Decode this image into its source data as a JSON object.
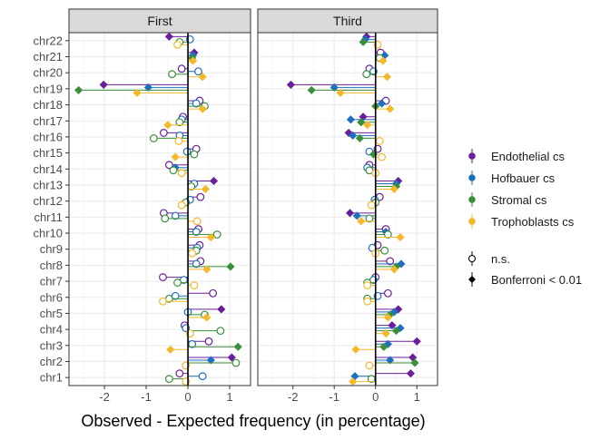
{
  "chart_data": {
    "type": "lollipop-dot",
    "xlabel": "Observed - Expected frequency (in percentage)",
    "xlim": [
      -2.85,
      1.5
    ],
    "x_ticks": [
      -2,
      -1,
      0,
      1
    ],
    "categories": [
      "chr1",
      "chr2",
      "chr3",
      "chr4",
      "chr5",
      "chr6",
      "chr7",
      "chr8",
      "chr9",
      "chr10",
      "chr11",
      "chr12",
      "chr13",
      "chr14",
      "chr15",
      "chr16",
      "chr17",
      "chr18",
      "chr19",
      "chr20",
      "chr21",
      "chr22"
    ],
    "panels": [
      "First",
      "Third"
    ],
    "series": [
      {
        "name": "Endothelial cs",
        "color": "#6a1f9a"
      },
      {
        "name": "Hofbauer cs",
        "color": "#1f6fbf"
      },
      {
        "name": "Stromal cs",
        "color": "#3a8f3a"
      },
      {
        "name": "Trophoblasts cs",
        "color": "#f4b829"
      }
    ],
    "legend_placement": "right",
    "significance_legend": {
      "ns_label": "n.s.",
      "sig_label": "Bonferroni < 0.01"
    },
    "values": {
      "First": {
        "Endothelial cs": [
          [
            -0.2,
            "ns"
          ],
          [
            1.05,
            "sig"
          ],
          [
            0.5,
            "ns"
          ],
          [
            -0.08,
            "ns"
          ],
          [
            0.8,
            "sig"
          ],
          [
            0.6,
            "ns"
          ],
          [
            -0.6,
            "ns"
          ],
          [
            0.3,
            "ns"
          ],
          [
            0.28,
            "ns"
          ],
          [
            0.25,
            "ns"
          ],
          [
            -0.58,
            "ns"
          ],
          [
            0.3,
            "ns"
          ],
          [
            0.62,
            "sig"
          ],
          [
            -0.45,
            "ns"
          ],
          [
            0.2,
            "ns"
          ],
          [
            -0.58,
            "ns"
          ],
          [
            -0.12,
            "ns"
          ],
          [
            0.28,
            "ns"
          ],
          [
            -2.02,
            "sig"
          ],
          [
            -0.15,
            "ns"
          ],
          [
            0.15,
            "sig"
          ],
          [
            -0.45,
            "sig"
          ]
        ],
        "Hofbauer cs": [
          [
            0.35,
            "ns"
          ],
          [
            0.55,
            "sig"
          ],
          [
            0.1,
            "ns"
          ],
          [
            -0.05,
            "ns"
          ],
          [
            0.0,
            "ns"
          ],
          [
            -0.3,
            "ns"
          ],
          [
            -0.1,
            "ns"
          ],
          [
            0.2,
            "ns"
          ],
          [
            0.22,
            "ns"
          ],
          [
            0.2,
            "ns"
          ],
          [
            -0.3,
            "ns"
          ],
          [
            0.05,
            "ns"
          ],
          [
            0.15,
            "ns"
          ],
          [
            -0.3,
            "sig"
          ],
          [
            -0.02,
            "ns"
          ],
          [
            -0.2,
            "ns"
          ],
          [
            -0.15,
            "ns"
          ],
          [
            0.2,
            "ns"
          ],
          [
            -0.95,
            "sig"
          ],
          [
            0.25,
            "ns"
          ],
          [
            0.12,
            "sig"
          ],
          [
            0.05,
            "ns"
          ]
        ],
        "Stromal cs": [
          [
            -0.45,
            "ns"
          ],
          [
            1.15,
            "ns"
          ],
          [
            1.2,
            "sig"
          ],
          [
            0.78,
            "ns"
          ],
          [
            0.4,
            "ns"
          ],
          [
            -0.45,
            "ns"
          ],
          [
            -0.25,
            "ns"
          ],
          [
            1.02,
            "sig"
          ],
          [
            0.2,
            "ns"
          ],
          [
            0.7,
            "ns"
          ],
          [
            -0.55,
            "ns"
          ],
          [
            -0.05,
            "ns"
          ],
          [
            0.08,
            "ns"
          ],
          [
            -0.35,
            "ns"
          ],
          [
            0.15,
            "ns"
          ],
          [
            -0.82,
            "ns"
          ],
          [
            -0.2,
            "ns"
          ],
          [
            0.4,
            "ns"
          ],
          [
            -2.62,
            "sig"
          ],
          [
            -0.38,
            "ns"
          ],
          [
            0.1,
            "sig"
          ],
          [
            -0.2,
            "ns"
          ]
        ],
        "Trophoblasts cs": [
          [
            -0.05,
            "ns"
          ],
          [
            -0.05,
            "ns"
          ],
          [
            -0.42,
            "sig"
          ],
          [
            0.05,
            "ns"
          ],
          [
            0.45,
            "sig"
          ],
          [
            -0.6,
            "ns"
          ],
          [
            0.15,
            "ns"
          ],
          [
            0.45,
            "sig"
          ],
          [
            0.1,
            "ns"
          ],
          [
            0.55,
            "sig"
          ],
          [
            0.22,
            "ns"
          ],
          [
            -0.15,
            "ns"
          ],
          [
            0.42,
            "sig"
          ],
          [
            -0.15,
            "ns"
          ],
          [
            -0.3,
            "sig"
          ],
          [
            -0.22,
            "ns"
          ],
          [
            -0.48,
            "sig"
          ],
          [
            0.35,
            "sig"
          ],
          [
            -1.22,
            "sig"
          ],
          [
            0.35,
            "sig"
          ],
          [
            0.12,
            "sig"
          ],
          [
            -0.25,
            "ns"
          ]
        ]
      },
      "Third": {
        "Endothelial cs": [
          [
            0.85,
            "sig"
          ],
          [
            0.9,
            "sig"
          ],
          [
            1.0,
            "sig"
          ],
          [
            0.4,
            "sig"
          ],
          [
            0.55,
            "sig"
          ],
          [
            0.3,
            "ns"
          ],
          [
            0.0,
            "ns"
          ],
          [
            0.35,
            "ns"
          ],
          [
            0.05,
            "ns"
          ],
          [
            0.25,
            "ns"
          ],
          [
            -0.62,
            "sig"
          ],
          [
            0.1,
            "ns"
          ],
          [
            0.55,
            "sig"
          ],
          [
            -0.15,
            "ns"
          ],
          [
            0.05,
            "ns"
          ],
          [
            -0.65,
            "sig"
          ],
          [
            -0.3,
            "sig"
          ],
          [
            0.25,
            "ns"
          ],
          [
            -2.05,
            "sig"
          ],
          [
            -0.15,
            "ns"
          ],
          [
            0.12,
            "ns"
          ],
          [
            -0.22,
            "sig"
          ]
        ],
        "Hofbauer cs": [
          [
            -0.5,
            "sig"
          ],
          [
            0.35,
            "sig"
          ],
          [
            0.3,
            "sig"
          ],
          [
            0.6,
            "sig"
          ],
          [
            0.45,
            "sig"
          ],
          [
            0.05,
            "ns"
          ],
          [
            -0.05,
            "ns"
          ],
          [
            0.62,
            "sig"
          ],
          [
            -0.08,
            "ns"
          ],
          [
            0.25,
            "sig"
          ],
          [
            -0.45,
            "sig"
          ],
          [
            -0.02,
            "ns"
          ],
          [
            0.5,
            "sig"
          ],
          [
            -0.2,
            "ns"
          ],
          [
            -0.15,
            "ns"
          ],
          [
            -0.55,
            "sig"
          ],
          [
            -0.6,
            "sig"
          ],
          [
            0.15,
            "sig"
          ],
          [
            -1.0,
            "sig"
          ],
          [
            -0.05,
            "ns"
          ],
          [
            0.22,
            "sig"
          ],
          [
            -0.25,
            "sig"
          ]
        ],
        "Stromal cs": [
          [
            -0.1,
            "ns"
          ],
          [
            0.95,
            "sig"
          ],
          [
            0.2,
            "sig"
          ],
          [
            0.5,
            "sig"
          ],
          [
            0.35,
            "sig"
          ],
          [
            -0.2,
            "ns"
          ],
          [
            -0.2,
            "ns"
          ],
          [
            0.5,
            "sig"
          ],
          [
            0.22,
            "ns"
          ],
          [
            0.3,
            "ns"
          ],
          [
            -0.15,
            "ns"
          ],
          [
            0.0,
            "ns"
          ],
          [
            0.5,
            "sig"
          ],
          [
            -0.15,
            "ns"
          ],
          [
            -0.05,
            "sig"
          ],
          [
            -0.38,
            "sig"
          ],
          [
            -0.35,
            "sig"
          ],
          [
            0.0,
            "sig"
          ],
          [
            -1.55,
            "sig"
          ],
          [
            -0.22,
            "ns"
          ],
          [
            0.1,
            "ns"
          ],
          [
            -0.3,
            "sig"
          ]
        ],
        "Trophoblasts cs": [
          [
            -0.55,
            "sig"
          ],
          [
            -0.15,
            "ns"
          ],
          [
            -0.48,
            "sig"
          ],
          [
            0.25,
            "sig"
          ],
          [
            0.3,
            "sig"
          ],
          [
            -0.2,
            "ns"
          ],
          [
            -0.2,
            "ns"
          ],
          [
            0.45,
            "sig"
          ],
          [
            0.0,
            "ns"
          ],
          [
            0.6,
            "sig"
          ],
          [
            -0.35,
            "sig"
          ],
          [
            -0.1,
            "ns"
          ],
          [
            0.45,
            "sig"
          ],
          [
            0.0,
            "ns"
          ],
          [
            0.15,
            "ns"
          ],
          [
            0.1,
            "ns"
          ],
          [
            -0.2,
            "sig"
          ],
          [
            0.35,
            "sig"
          ],
          [
            -0.85,
            "sig"
          ],
          [
            0.28,
            "sig"
          ],
          [
            0.18,
            "sig"
          ],
          [
            0.05,
            "ns"
          ]
        ]
      }
    }
  }
}
